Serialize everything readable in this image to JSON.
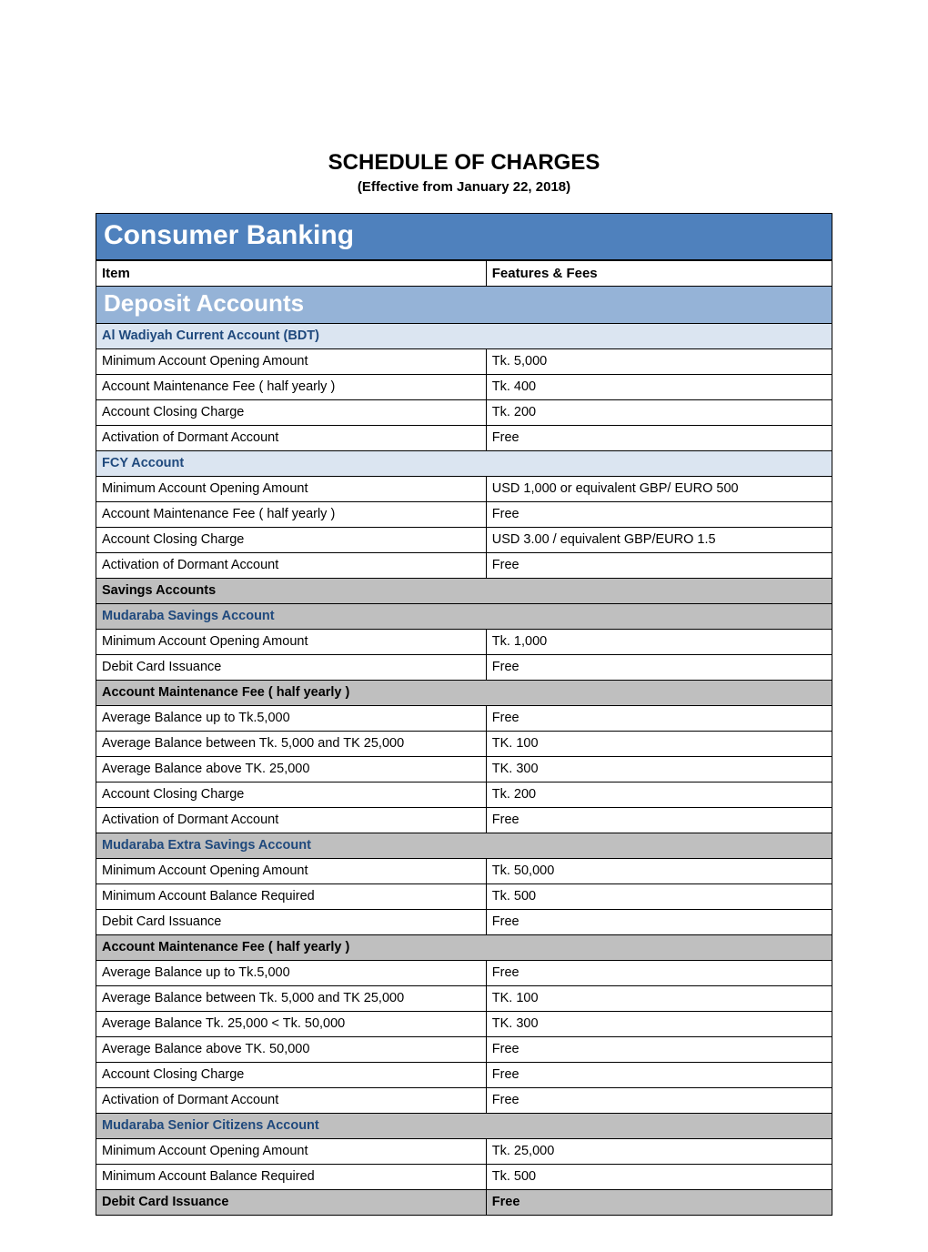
{
  "colors": {
    "banner_bg": "#4f81bd",
    "section_bg": "#95b3d7",
    "blue_sub_bg": "#dbe5f1",
    "blue_text": "#1f497d",
    "gray_bg": "#bfbfbf",
    "border": "#000000",
    "page_bg": "#ffffff"
  },
  "fonts": {
    "family": "Arial",
    "title_size_pt": 18,
    "banner_size_pt": 23,
    "section_size_pt": 20,
    "body_size_pt": 11
  },
  "title": "SCHEDULE OF CHARGES",
  "subtitle": "(Effective from January 22, 2018)",
  "columns": {
    "item": "Item",
    "fees": "Features & Fees"
  },
  "rows": [
    {
      "style": "banner",
      "span": 2,
      "c0": "Consumer Banking"
    },
    {
      "style": "header",
      "c0": "Item",
      "c1": "Features & Fees"
    },
    {
      "style": "section",
      "span": 2,
      "c0": "Deposit  Accounts"
    },
    {
      "style": "blue-sub",
      "span": 2,
      "c0": "Al Wadiyah Current Account (BDT)"
    },
    {
      "style": "data",
      "c0": "Minimum Account Opening Amount",
      "c1": "Tk. 5,000"
    },
    {
      "style": "data",
      "c0": "Account Maintenance Fee ( half yearly )",
      "c1": "Tk. 400"
    },
    {
      "style": "data",
      "c0": "Account Closing Charge",
      "c1": "Tk. 200"
    },
    {
      "style": "data",
      "c0": "Activation of Dormant Account",
      "c1": "Free"
    },
    {
      "style": "blue-sub",
      "span": 2,
      "c0": "FCY Account"
    },
    {
      "style": "data",
      "c0": "Minimum Account Opening Amount",
      "c1": "USD 1,000 or equivalent GBP/ EURO 500"
    },
    {
      "style": "data",
      "c0": "Account Maintenance Fee ( half yearly )",
      "c1": "Free"
    },
    {
      "style": "data",
      "c0": "Account Closing Charge",
      "c1": "USD 3.00 / equivalent GBP/EURO 1.5"
    },
    {
      "style": "data",
      "c0": "Activation of Dormant Account",
      "c1": "Free"
    },
    {
      "style": "gray-head",
      "span": 2,
      "c0": "Savings Accounts"
    },
    {
      "style": "gray-blue",
      "span": 2,
      "c0": "Mudaraba Savings Account"
    },
    {
      "style": "data",
      "c0": "Minimum Account Opening Amount",
      "c1": "Tk. 1,000"
    },
    {
      "style": "data",
      "c0": "Debit Card Issuance",
      "c1": "Free"
    },
    {
      "style": "gray-head",
      "span": 2,
      "c0": "Account Maintenance Fee ( half yearly )"
    },
    {
      "style": "data",
      "c0": "Average Balance up to Tk.5,000",
      "c1": "Free"
    },
    {
      "style": "data",
      "c0": " Average Balance between Tk. 5,000 and TK 25,000",
      "c1": "TK. 100"
    },
    {
      "style": "data",
      "c0": " Average Balance above TK. 25,000",
      "c1": "TK. 300"
    },
    {
      "style": "data",
      "c0": "Account Closing Charge",
      "c1": "Tk. 200"
    },
    {
      "style": "data",
      "c0": "Activation of Dormant Account",
      "c1": "Free"
    },
    {
      "style": "gray-blue",
      "span": 2,
      "c0": "Mudaraba Extra Savings Account"
    },
    {
      "style": "data",
      "c0": "Minimum Account Opening Amount",
      "c1": "Tk. 50,000"
    },
    {
      "style": "data",
      "c0": "Minimum Account Balance Required",
      "c1": "Tk. 500"
    },
    {
      "style": "data",
      "c0": "Debit Card Issuance",
      "c1": "Free"
    },
    {
      "style": "gray-head",
      "span": 2,
      "c0": "Account Maintenance Fee ( half yearly )"
    },
    {
      "style": "data",
      "c0": "Average Balance up to Tk.5,000",
      "c1": "Free"
    },
    {
      "style": "data",
      "c0": "Average Balance between Tk. 5,000 and TK 25,000",
      "c1": "TK. 100"
    },
    {
      "style": "data",
      "c0": " Average Balance  Tk. 25,000 < Tk. 50,000",
      "c1": " TK. 300"
    },
    {
      "style": "data",
      "c0": " Average Balance above TK. 50,000",
      "c1": "Free"
    },
    {
      "style": "data",
      "c0": "Account Closing Charge",
      "c1": "Free"
    },
    {
      "style": "data",
      "c0": "Activation of Dormant Account",
      "c1": "Free"
    },
    {
      "style": "gray-blue",
      "span": 2,
      "c0": "Mudaraba Senior Citizens  Account"
    },
    {
      "style": "data",
      "c0": "Minimum Account Opening Amount",
      "c1": "Tk. 25,000"
    },
    {
      "style": "data",
      "c0": "Minimum Account Balance Required",
      "c1": "Tk. 500"
    },
    {
      "style": "gray-head",
      "c0": "Debit Card Issuance",
      "c1": "Free"
    }
  ]
}
